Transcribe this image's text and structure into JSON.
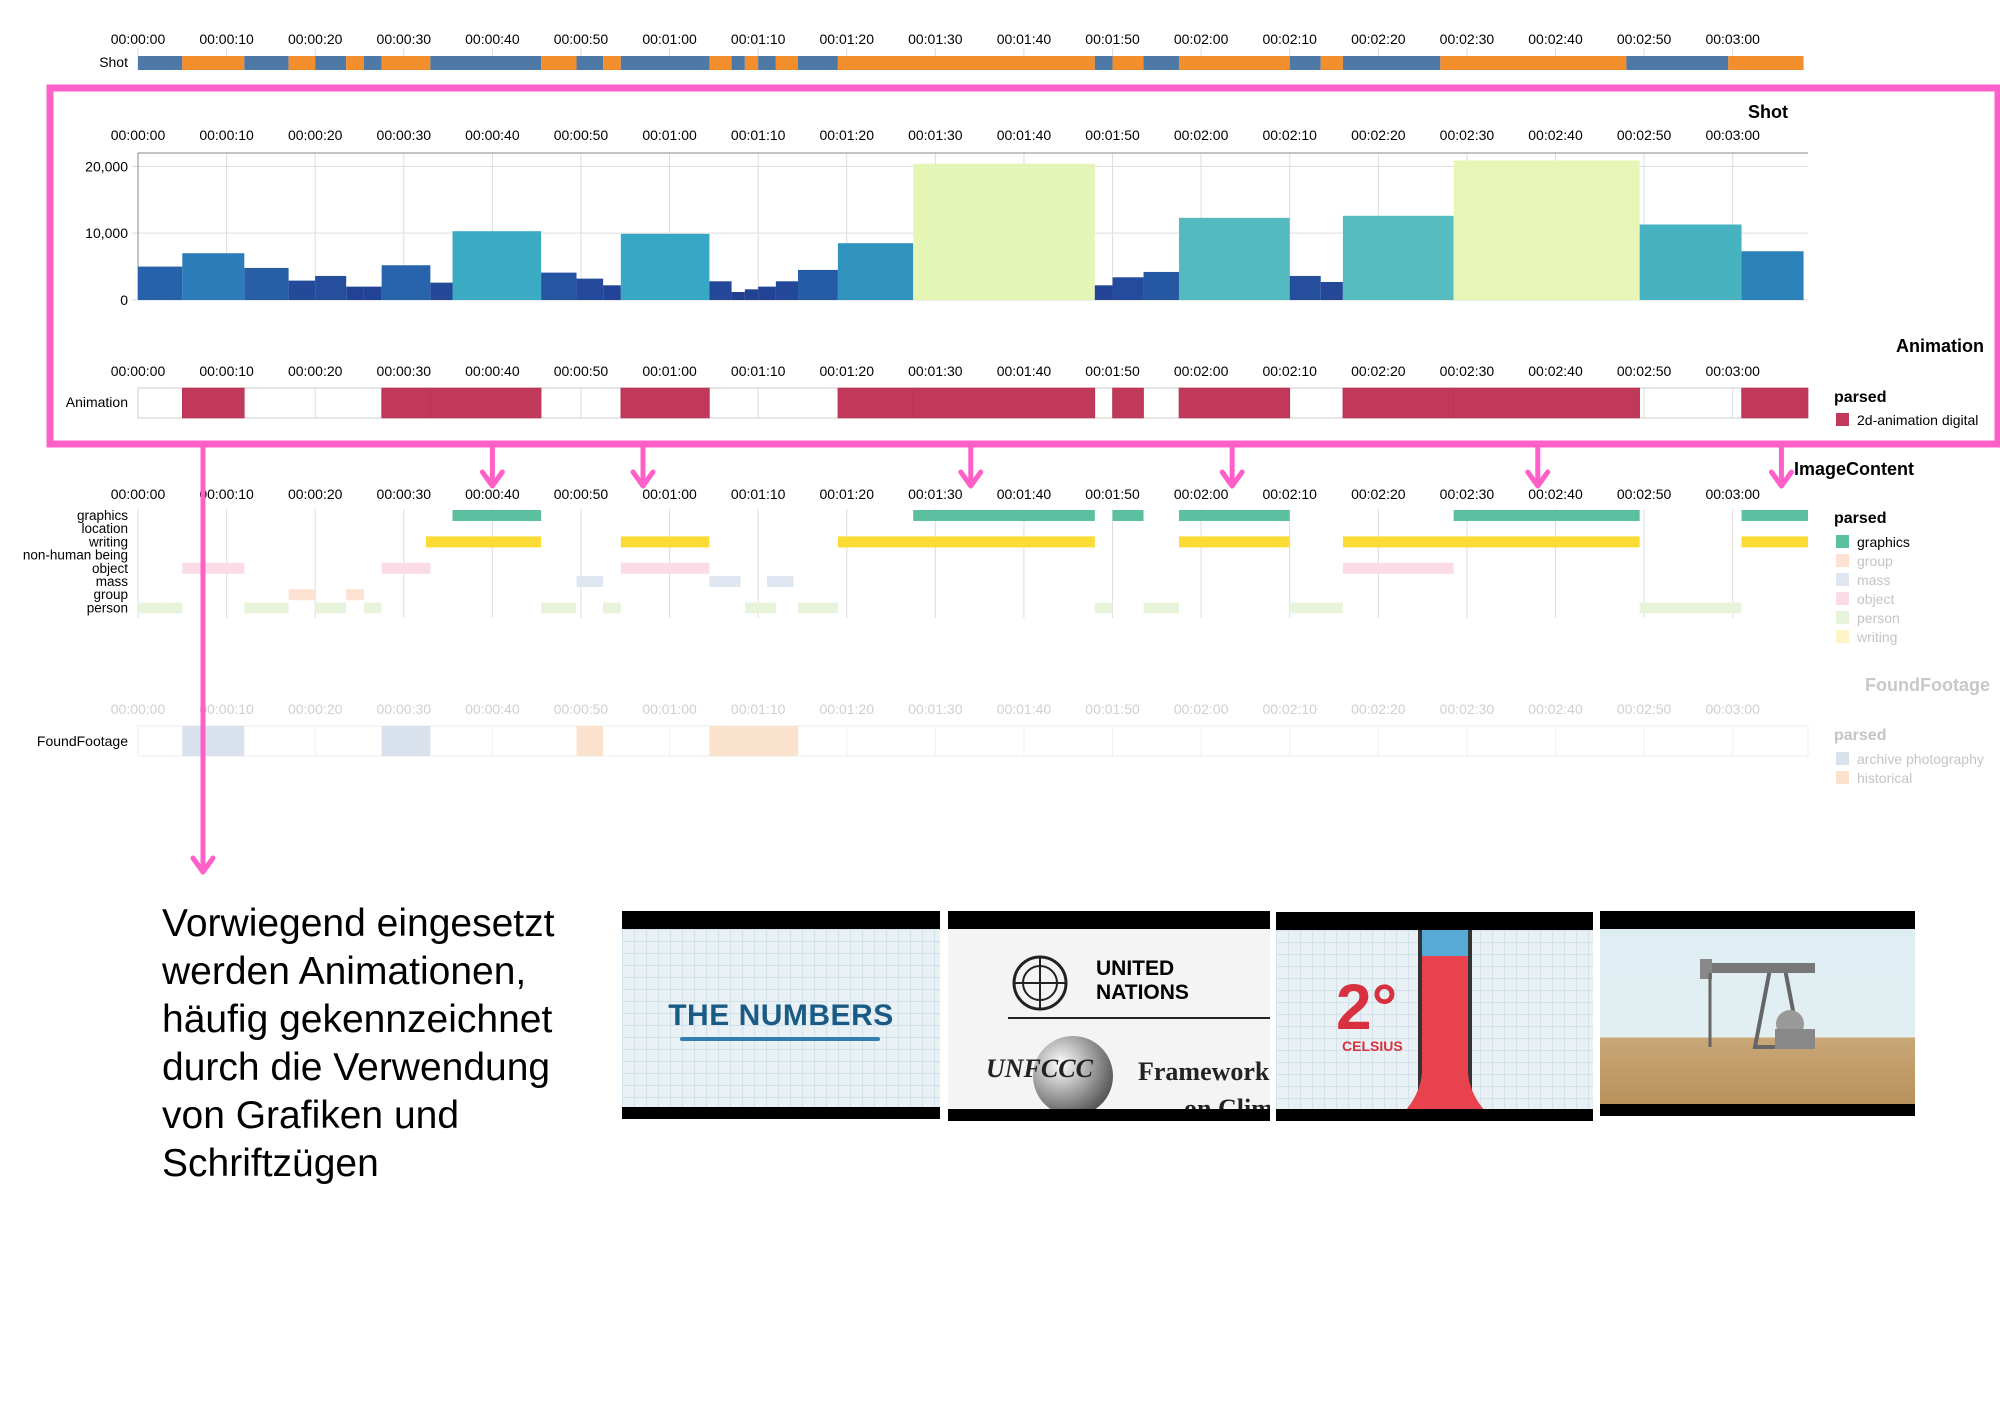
{
  "time_ticks": [
    "00:00:00",
    "00:00:10",
    "00:00:20",
    "00:00:30",
    "00:00:40",
    "00:00:50",
    "00:01:00",
    "00:01:10",
    "00:01:20",
    "00:01:30",
    "00:01:40",
    "00:01:50",
    "00:02:00",
    "00:02:10",
    "00:02:20",
    "00:02:30",
    "00:02:40",
    "00:02:50",
    "00:03:00"
  ],
  "colors": {
    "shot_blue": "#4e79a7",
    "shot_orange": "#f28e2b",
    "highlight": "#ff5fc9",
    "animation": "#c0385a",
    "graphics": "#5cc0a0",
    "writing": "#fbdb34"
  },
  "shot_strip": {
    "label": "Shot",
    "segments": [
      [
        0,
        5,
        "blue"
      ],
      [
        5,
        12,
        "orange"
      ],
      [
        12,
        17,
        "blue"
      ],
      [
        17,
        20,
        "orange"
      ],
      [
        20,
        23.5,
        "blue"
      ],
      [
        23.5,
        25.5,
        "orange"
      ],
      [
        25.5,
        27.5,
        "blue"
      ],
      [
        27.5,
        33,
        "orange"
      ],
      [
        33,
        45.5,
        "blue"
      ],
      [
        45.5,
        49.5,
        "orange"
      ],
      [
        49.5,
        52.5,
        "blue"
      ],
      [
        52.5,
        54.5,
        "orange"
      ],
      [
        54.5,
        64.5,
        "blue"
      ],
      [
        64.5,
        67,
        "orange"
      ],
      [
        67,
        68.5,
        "blue"
      ],
      [
        68.5,
        70,
        "orange"
      ],
      [
        70,
        72,
        "blue"
      ],
      [
        72,
        74.5,
        "orange"
      ],
      [
        74.5,
        79,
        "blue"
      ],
      [
        79,
        108,
        "orange"
      ],
      [
        108,
        110,
        "blue"
      ],
      [
        110,
        113.5,
        "orange"
      ],
      [
        113.5,
        117.5,
        "blue"
      ],
      [
        117.5,
        130,
        "orange"
      ],
      [
        130,
        133.5,
        "blue"
      ],
      [
        133.5,
        136,
        "orange"
      ],
      [
        136,
        147,
        "blue"
      ],
      [
        147,
        168,
        "orange"
      ],
      [
        168,
        179.5,
        "blue"
      ],
      [
        179.5,
        188,
        "orange"
      ]
    ]
  },
  "chart_data": [
    {
      "type": "bar",
      "title": "Shot",
      "y_ticks": [
        "20,000",
        "10,000",
        "0"
      ],
      "ylim": [
        0,
        22000
      ],
      "grid": true,
      "bars": [
        [
          0,
          5,
          5000
        ],
        [
          5,
          12,
          7000
        ],
        [
          12,
          17,
          4800
        ],
        [
          17,
          20,
          2900
        ],
        [
          20,
          23.5,
          3600
        ],
        [
          23.5,
          25.5,
          2000
        ],
        [
          25.5,
          27.5,
          2000
        ],
        [
          27.5,
          33,
          5200
        ],
        [
          33,
          35.5,
          2600
        ],
        [
          35.5,
          45.5,
          10300
        ],
        [
          45.5,
          49.5,
          4100
        ],
        [
          49.5,
          52.5,
          3200
        ],
        [
          52.5,
          54.5,
          2200
        ],
        [
          54.5,
          64.5,
          9900
        ],
        [
          64.5,
          67,
          2800
        ],
        [
          67,
          68.5,
          1200
        ],
        [
          68.5,
          70,
          1600
        ],
        [
          70,
          72,
          2000
        ],
        [
          72,
          74.5,
          2800
        ],
        [
          74.5,
          79,
          4500
        ],
        [
          79,
          87.5,
          8500
        ],
        [
          87.5,
          108,
          20400
        ],
        [
          108,
          110,
          2200
        ],
        [
          110,
          113.5,
          3400
        ],
        [
          113.5,
          117.5,
          4200
        ],
        [
          117.5,
          130,
          12300
        ],
        [
          130,
          133.5,
          3600
        ],
        [
          133.5,
          136,
          2700
        ],
        [
          136,
          148.5,
          12600
        ],
        [
          148.5,
          169.5,
          20900
        ],
        [
          169.5,
          181,
          11300
        ],
        [
          181,
          188,
          7300
        ]
      ]
    },
    {
      "type": "timeline",
      "title": "Animation",
      "row_label": "Animation",
      "legend_title": "parsed",
      "legend": [
        "2d-animation digital"
      ],
      "segments": [
        [
          5,
          12
        ],
        [
          27.5,
          33
        ],
        [
          33,
          45.5
        ],
        [
          54.5,
          64.5
        ],
        [
          79,
          87.5
        ],
        [
          87.5,
          108
        ],
        [
          110,
          113.5
        ],
        [
          117.5,
          130
        ],
        [
          136,
          148.5
        ],
        [
          148.5,
          169.5
        ],
        [
          181,
          188.5
        ]
      ]
    },
    {
      "type": "timeline",
      "title": "ImageContent",
      "rows": [
        "graphics",
        "location",
        "writing",
        "non-human being",
        "object",
        "mass",
        "group",
        "person"
      ],
      "legend_title": "parsed",
      "legend": [
        "graphics",
        "group",
        "mass",
        "object",
        "person",
        "writing"
      ],
      "graphics": [
        [
          35.5,
          45.5
        ],
        [
          87.5,
          108
        ],
        [
          110,
          113.5
        ],
        [
          117.5,
          130
        ],
        [
          148.5,
          169.5
        ],
        [
          181,
          188.5
        ]
      ],
      "writing": [
        [
          32.5,
          45.5
        ],
        [
          54.5,
          64.5
        ],
        [
          79,
          108
        ],
        [
          117.5,
          130
        ],
        [
          136,
          169.5
        ],
        [
          181,
          188.5
        ]
      ],
      "faint": [
        [
          5,
          12,
          4,
          "object"
        ],
        [
          27.5,
          33,
          4,
          "object"
        ],
        [
          54.5,
          64.5,
          4,
          "object"
        ],
        [
          136,
          148.5,
          4,
          "object"
        ],
        [
          49.5,
          52.5,
          5,
          "mass"
        ],
        [
          64.5,
          68,
          5,
          "mass"
        ],
        [
          71,
          74,
          5,
          "mass"
        ],
        [
          17,
          20,
          6,
          "group"
        ],
        [
          23.5,
          25.5,
          6,
          "group"
        ],
        [
          0,
          3,
          7,
          "person"
        ],
        [
          3,
          5,
          7,
          "person"
        ],
        [
          12,
          17,
          7,
          "person"
        ],
        [
          20,
          23.5,
          7,
          "person"
        ],
        [
          25.5,
          27.5,
          7,
          "person"
        ],
        [
          45.5,
          49.5,
          7,
          "person"
        ],
        [
          52.5,
          54.5,
          7,
          "person"
        ],
        [
          68.5,
          72,
          7,
          "person"
        ],
        [
          74.5,
          79,
          7,
          "person"
        ],
        [
          108,
          110,
          7,
          "person"
        ],
        [
          113.5,
          117.5,
          7,
          "person"
        ],
        [
          130,
          136,
          7,
          "person"
        ],
        [
          169.5,
          181,
          7,
          "person"
        ]
      ]
    },
    {
      "type": "timeline",
      "title": "FoundFootage",
      "row_label": "FoundFootage",
      "legend_title": "parsed",
      "legend": [
        "archive photography",
        "historical"
      ],
      "segments": [
        [
          5,
          12,
          "archive photography"
        ],
        [
          27.5,
          33,
          "archive photography"
        ],
        [
          49.5,
          52.5,
          "historical"
        ],
        [
          64.5,
          74.5,
          "historical"
        ]
      ]
    }
  ],
  "caption": {
    "lines": [
      "Vorwiegend eingesetzt",
      "werden Animationen,",
      "häufig gekennzeichnet",
      "durch die Verwendung",
      "von Grafiken und",
      "Schriftzügen"
    ]
  },
  "thumbnails": [
    {
      "name": "thumbnail-the-numbers",
      "text": "THE NUMBERS"
    },
    {
      "name": "thumbnail-united-nations",
      "line1": "UNITED",
      "line2": "NATIONS",
      "logo": "UNFCCC",
      "frame": "Framework Co",
      "clim": "on Clima"
    },
    {
      "name": "thumbnail-celsius",
      "deg": "2°",
      "unit": "CELSIUS"
    },
    {
      "name": "thumbnail-oil-pump"
    }
  ]
}
